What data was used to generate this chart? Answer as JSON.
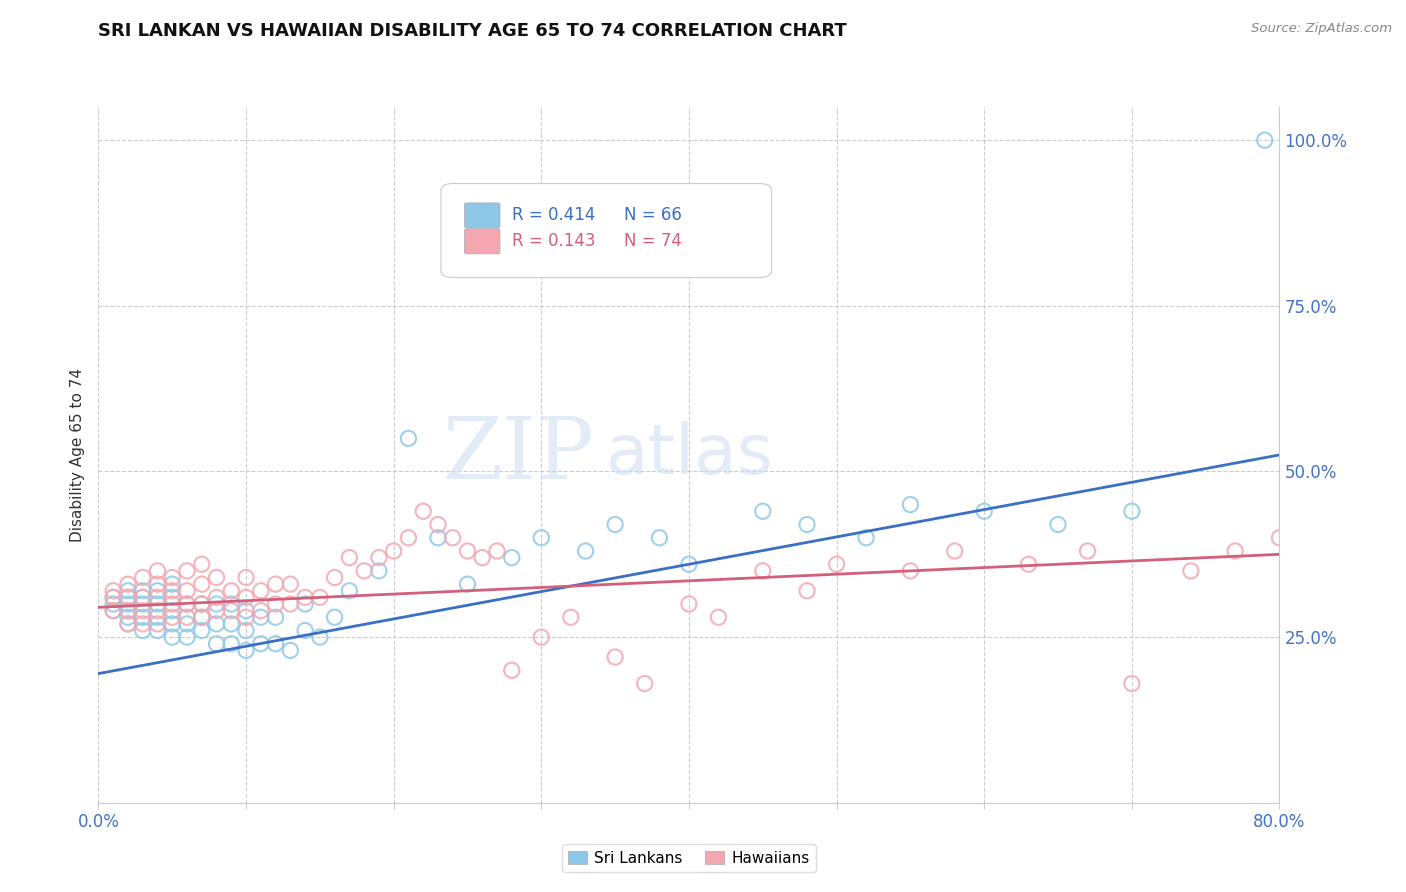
{
  "title": "SRI LANKAN VS HAWAIIAN DISABILITY AGE 65 TO 74 CORRELATION CHART",
  "source": "Source: ZipAtlas.com",
  "ylabel": "Disability Age 65 to 74",
  "yticks": [
    0.0,
    0.25,
    0.5,
    0.75,
    1.0
  ],
  "ytick_labels": [
    "",
    "25.0%",
    "50.0%",
    "75.0%",
    "100.0%"
  ],
  "xmin": 0.0,
  "xmax": 0.8,
  "ymin": 0.08,
  "ymax": 1.05,
  "blue_R": 0.414,
  "blue_N": 66,
  "pink_R": 0.143,
  "pink_N": 74,
  "blue_color": "#8ec8e8",
  "pink_color": "#f4a7b0",
  "blue_line_color": "#3a6fc4",
  "pink_line_color": "#d45f7a",
  "legend_label_blue": "Sri Lankans",
  "legend_label_pink": "Hawaiians",
  "watermark_zip": "ZIP",
  "watermark_atlas": "atlas",
  "blue_scatter_x": [
    0.01,
    0.01,
    0.01,
    0.02,
    0.02,
    0.02,
    0.02,
    0.02,
    0.02,
    0.03,
    0.03,
    0.03,
    0.03,
    0.03,
    0.04,
    0.04,
    0.04,
    0.04,
    0.05,
    0.05,
    0.05,
    0.05,
    0.05,
    0.06,
    0.06,
    0.06,
    0.07,
    0.07,
    0.07,
    0.08,
    0.08,
    0.08,
    0.09,
    0.09,
    0.09,
    0.1,
    0.1,
    0.1,
    0.11,
    0.11,
    0.12,
    0.12,
    0.13,
    0.14,
    0.14,
    0.15,
    0.16,
    0.17,
    0.19,
    0.21,
    0.23,
    0.25,
    0.28,
    0.3,
    0.33,
    0.35,
    0.38,
    0.4,
    0.45,
    0.48,
    0.52,
    0.55,
    0.6,
    0.65,
    0.7,
    0.79
  ],
  "blue_scatter_y": [
    0.29,
    0.3,
    0.31,
    0.27,
    0.28,
    0.3,
    0.31,
    0.32,
    0.29,
    0.26,
    0.28,
    0.3,
    0.31,
    0.32,
    0.26,
    0.28,
    0.3,
    0.32,
    0.25,
    0.27,
    0.29,
    0.31,
    0.33,
    0.25,
    0.27,
    0.3,
    0.26,
    0.28,
    0.3,
    0.24,
    0.27,
    0.3,
    0.24,
    0.27,
    0.3,
    0.23,
    0.26,
    0.29,
    0.24,
    0.28,
    0.24,
    0.28,
    0.23,
    0.26,
    0.3,
    0.25,
    0.28,
    0.32,
    0.35,
    0.55,
    0.4,
    0.33,
    0.37,
    0.4,
    0.38,
    0.42,
    0.4,
    0.36,
    0.44,
    0.42,
    0.4,
    0.45,
    0.44,
    0.42,
    0.44,
    1.0
  ],
  "pink_scatter_x": [
    0.01,
    0.01,
    0.01,
    0.02,
    0.02,
    0.02,
    0.02,
    0.03,
    0.03,
    0.03,
    0.03,
    0.04,
    0.04,
    0.04,
    0.04,
    0.04,
    0.05,
    0.05,
    0.05,
    0.05,
    0.06,
    0.06,
    0.06,
    0.06,
    0.07,
    0.07,
    0.07,
    0.07,
    0.08,
    0.08,
    0.08,
    0.09,
    0.09,
    0.1,
    0.1,
    0.1,
    0.11,
    0.11,
    0.12,
    0.12,
    0.13,
    0.13,
    0.14,
    0.15,
    0.16,
    0.17,
    0.18,
    0.19,
    0.2,
    0.21,
    0.22,
    0.23,
    0.24,
    0.25,
    0.26,
    0.27,
    0.28,
    0.3,
    0.32,
    0.35,
    0.37,
    0.4,
    0.42,
    0.45,
    0.48,
    0.5,
    0.55,
    0.58,
    0.63,
    0.67,
    0.7,
    0.74,
    0.77,
    0.8
  ],
  "pink_scatter_y": [
    0.29,
    0.31,
    0.32,
    0.27,
    0.29,
    0.31,
    0.33,
    0.27,
    0.29,
    0.31,
    0.34,
    0.27,
    0.29,
    0.31,
    0.33,
    0.35,
    0.28,
    0.3,
    0.32,
    0.34,
    0.28,
    0.3,
    0.32,
    0.35,
    0.28,
    0.3,
    0.33,
    0.36,
    0.29,
    0.31,
    0.34,
    0.29,
    0.32,
    0.28,
    0.31,
    0.34,
    0.29,
    0.32,
    0.3,
    0.33,
    0.3,
    0.33,
    0.31,
    0.31,
    0.34,
    0.37,
    0.35,
    0.37,
    0.38,
    0.4,
    0.44,
    0.42,
    0.4,
    0.38,
    0.37,
    0.38,
    0.2,
    0.25,
    0.28,
    0.22,
    0.18,
    0.3,
    0.28,
    0.35,
    0.32,
    0.36,
    0.35,
    0.38,
    0.36,
    0.38,
    0.18,
    0.35,
    0.38,
    0.4
  ],
  "blue_line_x0": 0.0,
  "blue_line_y0": 0.195,
  "blue_line_x1": 0.8,
  "blue_line_y1": 0.525,
  "pink_line_x0": 0.0,
  "pink_line_y0": 0.295,
  "pink_line_x1": 0.8,
  "pink_line_y1": 0.375
}
